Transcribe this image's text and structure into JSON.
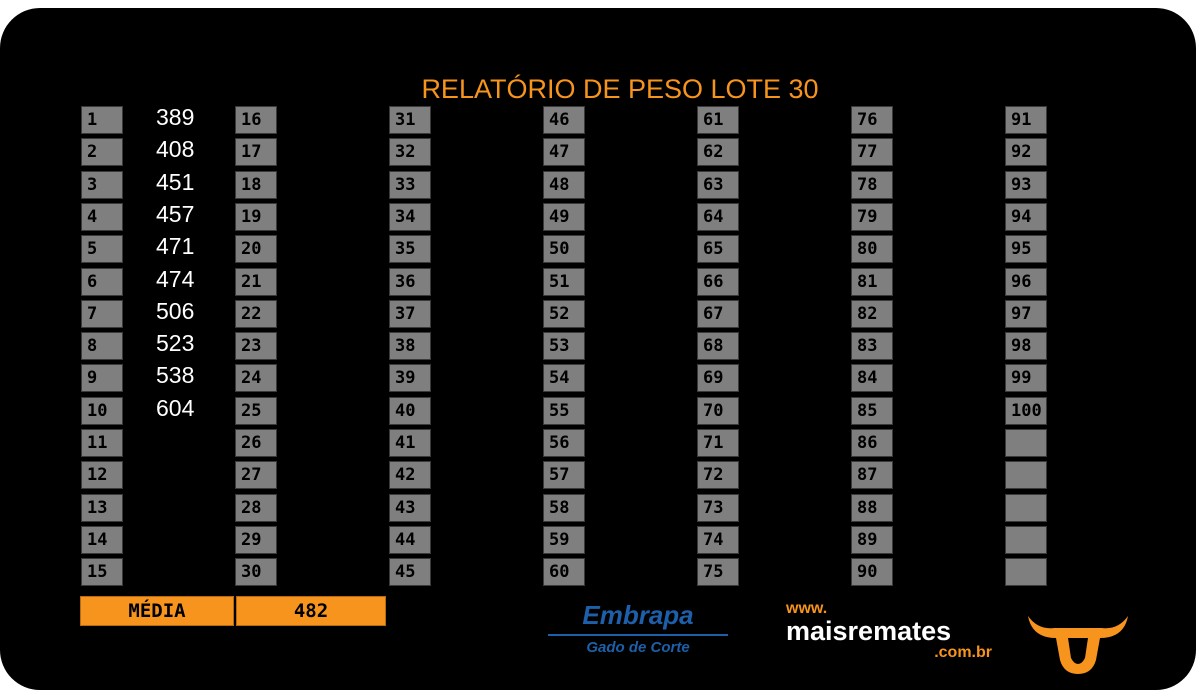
{
  "title": "RELATÓRIO DE PESO LOTE 30",
  "columns": [
    [
      "1",
      "2",
      "3",
      "4",
      "5",
      "6",
      "7",
      "8",
      "9",
      "10",
      "11",
      "12",
      "13",
      "14",
      "15"
    ],
    [
      "16",
      "17",
      "18",
      "19",
      "20",
      "21",
      "22",
      "23",
      "24",
      "25",
      "26",
      "27",
      "28",
      "29",
      "30"
    ],
    [
      "31",
      "32",
      "33",
      "34",
      "35",
      "36",
      "37",
      "38",
      "39",
      "40",
      "41",
      "42",
      "43",
      "44",
      "45"
    ],
    [
      "46",
      "47",
      "48",
      "49",
      "50",
      "51",
      "52",
      "53",
      "54",
      "55",
      "56",
      "57",
      "58",
      "59",
      "60"
    ],
    [
      "61",
      "62",
      "63",
      "64",
      "65",
      "66",
      "67",
      "68",
      "69",
      "70",
      "71",
      "72",
      "73",
      "74",
      "75"
    ],
    [
      "76",
      "77",
      "78",
      "79",
      "80",
      "81",
      "82",
      "83",
      "84",
      "85",
      "86",
      "87",
      "88",
      "89",
      "90"
    ],
    [
      "91",
      "92",
      "93",
      "94",
      "95",
      "96",
      "97",
      "98",
      "99",
      "100"
    ]
  ],
  "weights": [
    389,
    408,
    451,
    457,
    471,
    474,
    506,
    523,
    538,
    604
  ],
  "media": {
    "label": "MÉDIA",
    "value": 482
  },
  "logos": {
    "embrapa": "Embrapa",
    "embrapa_sub": "Gado de Corte",
    "www": "www.",
    "maisremates": "maisremates",
    "domain": ".com.br"
  }
}
